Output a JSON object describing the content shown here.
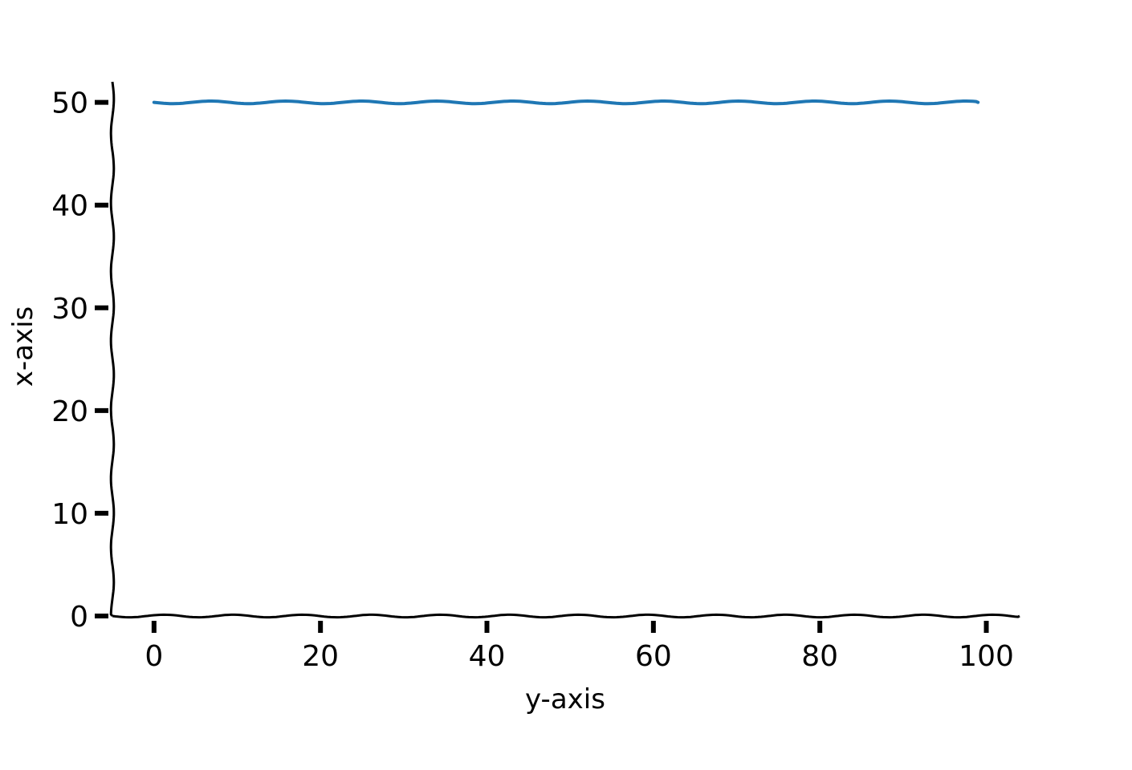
{
  "chart_data": {
    "type": "line",
    "title": "",
    "xlabel": "y-axis",
    "ylabel": "x-axis",
    "xlim": [
      -5,
      104
    ],
    "ylim": [
      0,
      52
    ],
    "xticks": [
      0,
      20,
      40,
      60,
      80,
      100
    ],
    "yticks": [
      0,
      10,
      20,
      30,
      40,
      50
    ],
    "grid": false,
    "style": "xkcd",
    "series": [
      {
        "color": "#1f77b4",
        "x": [
          0,
          99
        ],
        "y": [
          50,
          50
        ]
      }
    ],
    "axis_color": "#000000"
  }
}
